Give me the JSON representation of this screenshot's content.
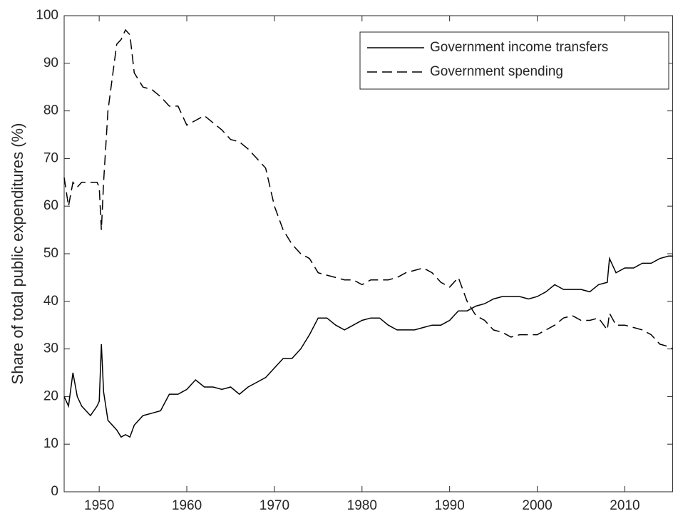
{
  "chart_data": {
    "type": "line",
    "y_label": "Share of total public expenditures (%)",
    "x": [
      1946,
      1946.5,
      1947,
      1947.5,
      1948,
      1949,
      1949.75,
      1950,
      1950.25,
      1950.5,
      1951,
      1952,
      1952.5,
      1953,
      1953.5,
      1954,
      1955,
      1956,
      1957,
      1958,
      1959,
      1960,
      1961,
      1962,
      1963,
      1964,
      1965,
      1966,
      1967,
      1968,
      1969,
      1970,
      1971,
      1972,
      1973,
      1974,
      1975,
      1976,
      1977,
      1978,
      1979,
      1980,
      1981,
      1982,
      1983,
      1984,
      1985,
      1986,
      1987,
      1988,
      1989,
      1990,
      1991,
      1992,
      1993,
      1994,
      1995,
      1996,
      1997,
      1998,
      1999,
      2000,
      2001,
      2002,
      2003,
      2004,
      2005,
      2006,
      2007,
      2008,
      2008.25,
      2009,
      2010,
      2011,
      2012,
      2013,
      2014,
      2015,
      2015.5
    ],
    "series": [
      {
        "name": "Government income transfers",
        "color": "#000000",
        "dash": false,
        "values": [
          20,
          18,
          25,
          20,
          18,
          16,
          18,
          19,
          31,
          21,
          15,
          13,
          11.5,
          12,
          11.5,
          14,
          16,
          16.5,
          17,
          20.5,
          20.5,
          21.5,
          23.5,
          22,
          22,
          21.5,
          22,
          20.5,
          22,
          23,
          24,
          26,
          28,
          28,
          30,
          33,
          36.5,
          36.5,
          35,
          34,
          35,
          36,
          36.5,
          36.5,
          35,
          34,
          34,
          34,
          34.5,
          35,
          35,
          36,
          38,
          38,
          39,
          39.5,
          40.5,
          41,
          41,
          41,
          40.5,
          41,
          42,
          43.5,
          42.5,
          42.5,
          42.5,
          42,
          43.5,
          44,
          49,
          46,
          47,
          47,
          48,
          48,
          49,
          49.5,
          49.5
        ]
      },
      {
        "name": "Government spending",
        "color": "#000000",
        "dash": true,
        "values": [
          66,
          60,
          65,
          64,
          65,
          65,
          65,
          64,
          55,
          65,
          80,
          94,
          95,
          97,
          96,
          88,
          85,
          84.5,
          83,
          81,
          81,
          77,
          78,
          79,
          77.5,
          76,
          74,
          73.5,
          72,
          70,
          68,
          60,
          55,
          52,
          50,
          49,
          46,
          45.5,
          45,
          44.5,
          44.5,
          43.5,
          44.5,
          44.5,
          44.5,
          45,
          46,
          46.5,
          47,
          46,
          44,
          43,
          45,
          40,
          37,
          36,
          34,
          33.5,
          32.5,
          33,
          33,
          33,
          34,
          35,
          36.5,
          37,
          36,
          36,
          36.5,
          34,
          37.5,
          35,
          35,
          34.5,
          34,
          33,
          31,
          30.5,
          30
        ]
      }
    ],
    "xlim": [
      1946,
      2015.5
    ],
    "xticks": [
      1950,
      1960,
      1970,
      1980,
      1990,
      2000,
      2010
    ],
    "ylim": [
      0,
      100
    ],
    "yticks": [
      0,
      10,
      20,
      30,
      40,
      50,
      60,
      70,
      80,
      90,
      100
    ],
    "legend": "top-right"
  }
}
